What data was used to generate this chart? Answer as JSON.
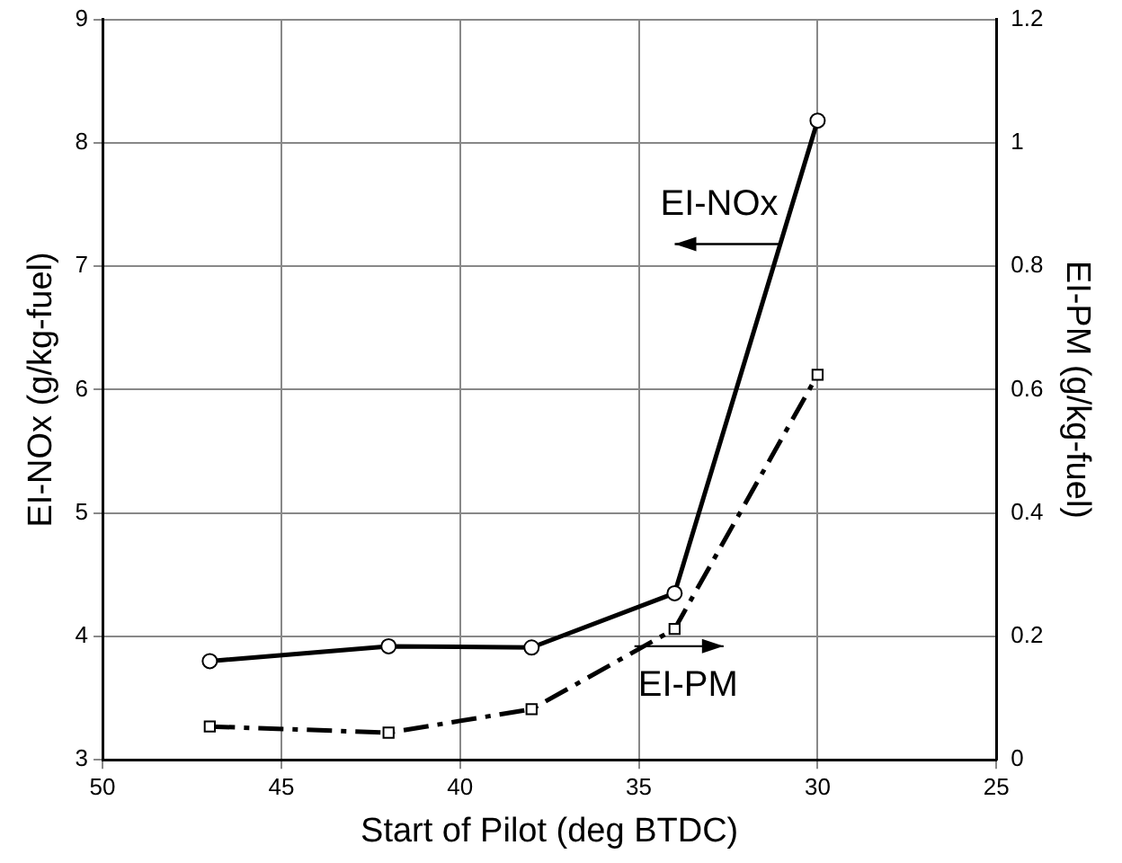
{
  "chart_data": {
    "type": "line",
    "xlabel": "Start of Pilot (deg BTDC)",
    "ylabel": "EI-NOx (g/kg-fuel)",
    "y2label": "EI-PM (g/kg-fuel)",
    "x": [
      47,
      42,
      38,
      34,
      30
    ],
    "series": [
      {
        "color": "#000000",
        "values": [
          3.8,
          3.92,
          3.91,
          4.35,
          8.18
        ],
        "marker": "circle",
        "line_style": "solid"
      },
      {
        "color": "#000000",
        "values": [
          0.054,
          0.044,
          0.082,
          0.212,
          0.624
        ],
        "axis": "y2",
        "marker": "square",
        "line_style": "dashed"
      }
    ],
    "xlim": [
      50,
      25
    ],
    "xticks": [
      50,
      45,
      40,
      35,
      30,
      25
    ],
    "ylim": [
      3,
      9
    ],
    "yticks": [
      3,
      4,
      5,
      6,
      7,
      8,
      9
    ],
    "y2lim": [
      0,
      1.2
    ],
    "y2ticks": [
      0,
      0.2,
      0.4,
      0.6,
      0.8,
      1,
      1.2
    ],
    "grid": true,
    "legend": false,
    "annotations": [
      "EI-NOx",
      "EI-PM"
    ]
  }
}
